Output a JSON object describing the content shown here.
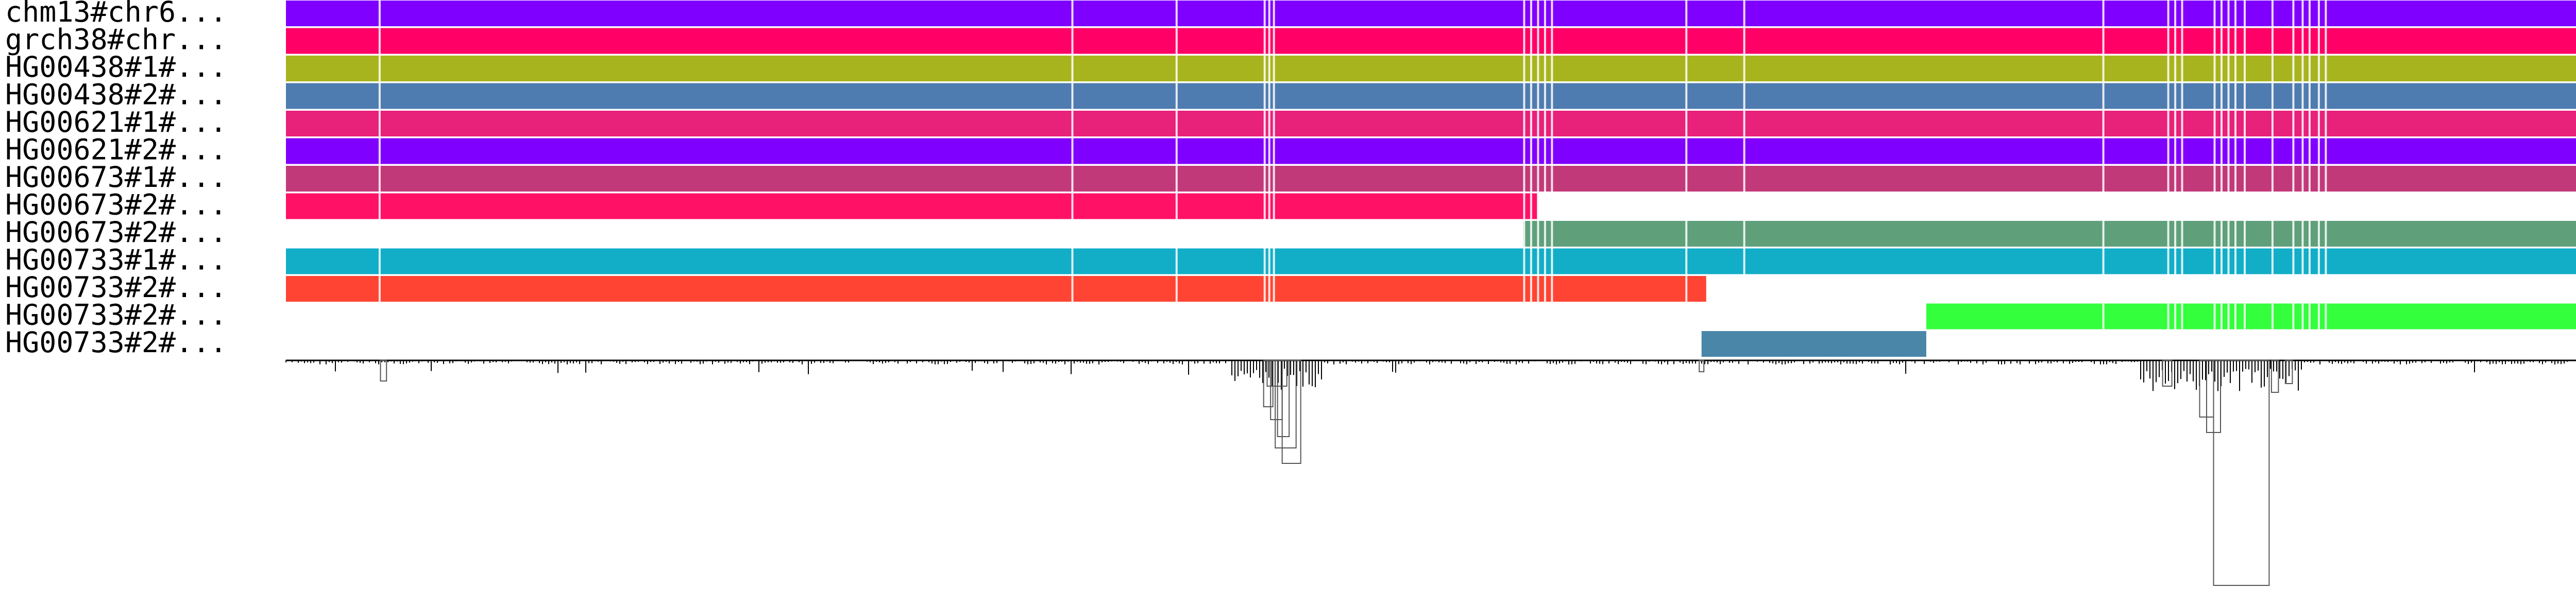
{
  "paths": [
    {
      "name": "chm13#chr6...",
      "color": "#8000FF",
      "start": 0,
      "end": 1
    },
    {
      "name": "grch38#chr...",
      "color": "#FF0066",
      "start": 0,
      "end": 1
    },
    {
      "name": "HG00438#1#...",
      "color": "#A8B41E",
      "start": 0,
      "end": 1
    },
    {
      "name": "HG00438#2#...",
      "color": "#4F7CB0",
      "start": 0,
      "end": 1
    },
    {
      "name": "HG00621#1#...",
      "color": "#E8217A",
      "start": 0,
      "end": 1
    },
    {
      "name": "HG00621#2#...",
      "color": "#8000FF",
      "start": 0,
      "end": 1
    },
    {
      "name": "HG00673#1#...",
      "color": "#C2397A",
      "start": 0,
      "end": 0.998
    },
    {
      "name": "HG00673#2#...",
      "color": "#FF1166",
      "start": 0,
      "end": 0.54
    },
    {
      "name": "HG00673#2#...",
      "color": "#5FA07A",
      "start": 0.534,
      "end": 1
    },
    {
      "name": "HG00733#1#...",
      "color": "#12AEC8",
      "start": 0,
      "end": 1
    },
    {
      "name": "HG00733#2#...",
      "color": "#FF4433",
      "start": 0,
      "end": 0.613
    },
    {
      "name": "HG00733#2#...",
      "color": "#33FF3C",
      "start": 0.708,
      "end": 1
    },
    {
      "name": "HG00733#2#...",
      "color": "#4A86A8",
      "start": 0.611,
      "end": 0.708
    }
  ],
  "gaps": [
    0.04,
    0.339,
    0.384,
    0.422,
    0.424,
    0.426,
    0.534,
    0.537,
    0.54,
    0.543,
    0.546,
    0.604,
    0.629,
    0.784,
    0.812,
    0.815,
    0.818,
    0.832,
    0.835,
    0.838,
    0.841,
    0.845,
    0.857,
    0.866,
    0.87,
    0.873,
    0.877,
    0.88
  ],
  "colors": {
    "background": "#FFFFFF",
    "text": "#000000",
    "depth": "#000000",
    "link_box": "#555555"
  }
}
